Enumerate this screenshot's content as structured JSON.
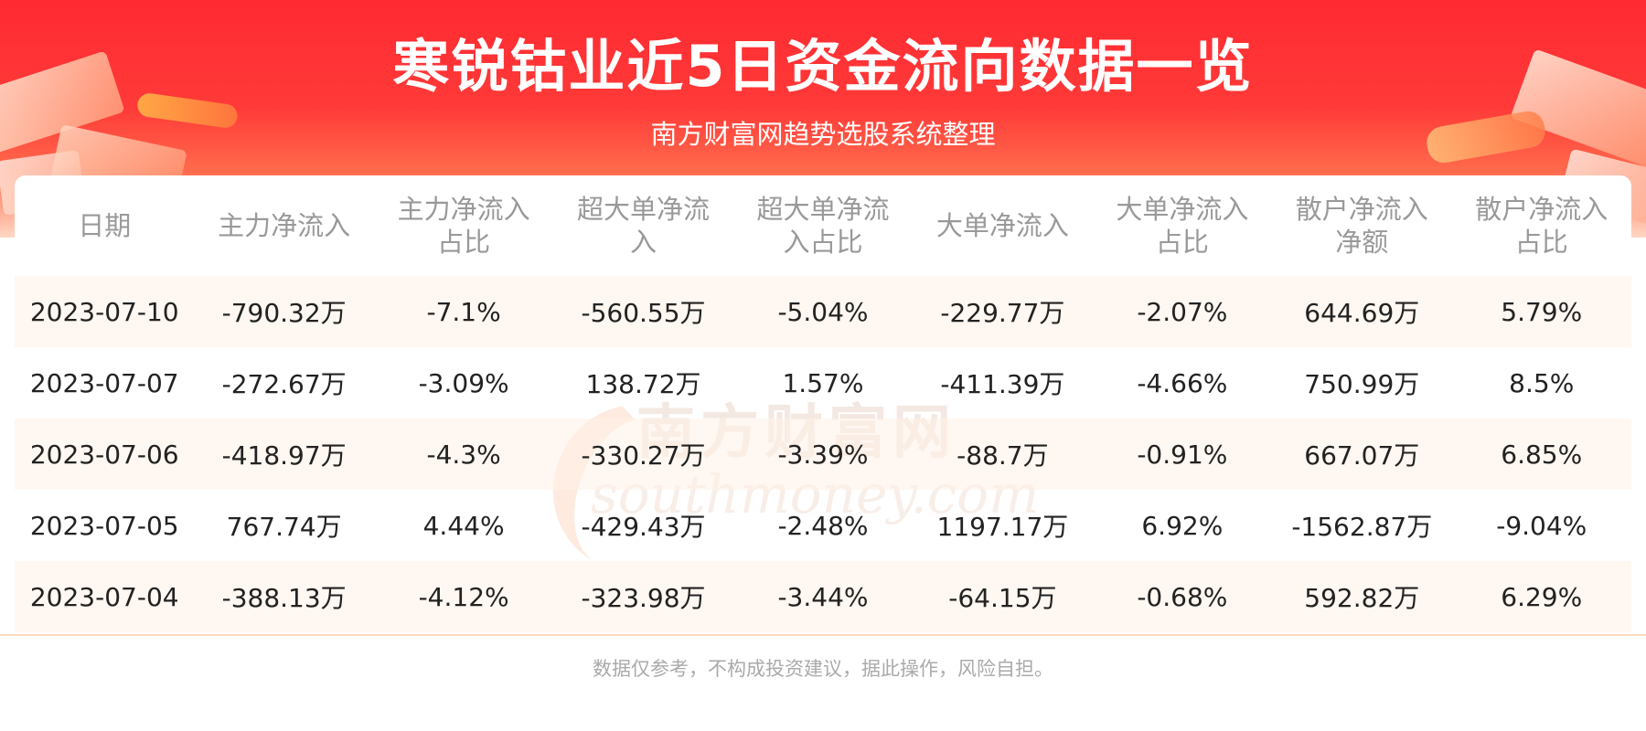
{
  "header": {
    "title": "寒锐钴业近5日资金流向数据一览",
    "subtitle": "南方财富网趋势选股系统整理"
  },
  "watermark": {
    "cn": "南方财富网",
    "en": "southmoney.com"
  },
  "table": {
    "headers": [
      [
        "日期"
      ],
      [
        "主力净流入"
      ],
      [
        "主力净流入",
        "占比"
      ],
      [
        "超大单净流",
        "入"
      ],
      [
        "超大单净流",
        "入占比"
      ],
      [
        "大单净流入"
      ],
      [
        "大单净流入",
        "占比"
      ],
      [
        "散户净流入",
        "净额"
      ],
      [
        "散户净流入",
        "占比"
      ]
    ],
    "rows": [
      [
        "2023-07-10",
        "-790.32万",
        "-7.1%",
        "-560.55万",
        "-5.04%",
        "-229.77万",
        "-2.07%",
        "644.69万",
        "5.79%"
      ],
      [
        "2023-07-07",
        "-272.67万",
        "-3.09%",
        "138.72万",
        "1.57%",
        "-411.39万",
        "-4.66%",
        "750.99万",
        "8.5%"
      ],
      [
        "2023-07-06",
        "-418.97万",
        "-4.3%",
        "-330.27万",
        "-3.39%",
        "-88.7万",
        "-0.91%",
        "667.07万",
        "6.85%"
      ],
      [
        "2023-07-05",
        "767.74万",
        "4.44%",
        "-429.43万",
        "-2.48%",
        "1197.17万",
        "6.92%",
        "-1562.87万",
        "-9.04%"
      ],
      [
        "2023-07-04",
        "-388.13万",
        "-4.12%",
        "-323.98万",
        "-3.44%",
        "-64.15万",
        "-0.68%",
        "592.82万",
        "6.29%"
      ]
    ]
  },
  "footer": {
    "disclaimer": "数据仅参考，不构成投资建议，据此操作，风险自担。"
  },
  "colors": {
    "banner_red": "#ff2a32",
    "header_text": "#999999",
    "stripe": "#fff0e6"
  }
}
